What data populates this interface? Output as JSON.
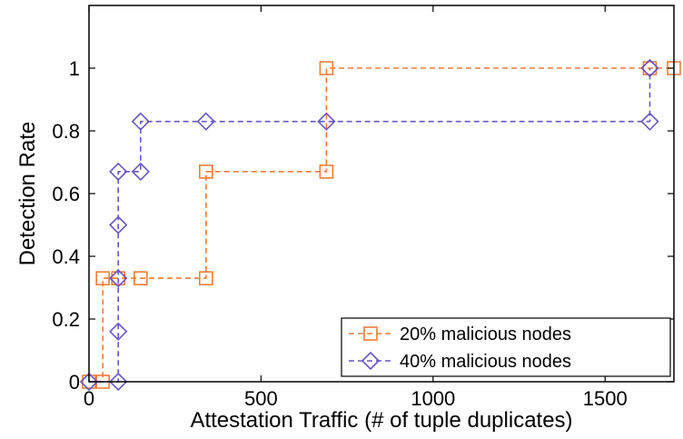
{
  "chart_data": {
    "type": "line",
    "title": "",
    "xlabel": "Attestation Traffic (# of tuple duplicates)",
    "ylabel": "Detection Rate",
    "xlim": [
      0,
      1700
    ],
    "ylim": [
      0,
      1.2
    ],
    "xticks": [
      0,
      500,
      1000,
      1500
    ],
    "yticks": [
      0,
      0.2,
      0.4,
      0.6,
      0.8,
      1
    ],
    "xtick_labels": [
      "0",
      "500",
      "1000",
      "1500"
    ],
    "ytick_labels": [
      "0",
      "0.2",
      "0.4",
      "0.6",
      "0.8",
      "1"
    ],
    "grid": false,
    "legend_position": "bottom-right",
    "series": [
      {
        "name": "20% malicious nodes",
        "color": "#f07d3a",
        "marker": "square",
        "line_style": "dashed-step",
        "points": [
          {
            "x": 0,
            "y": 0
          },
          {
            "x": 40,
            "y": 0
          },
          {
            "x": 40,
            "y": 0.33
          },
          {
            "x": 85,
            "y": 0.33
          },
          {
            "x": 150,
            "y": 0.33
          },
          {
            "x": 340,
            "y": 0.33
          },
          {
            "x": 340,
            "y": 0.67
          },
          {
            "x": 690,
            "y": 0.67
          },
          {
            "x": 690,
            "y": 1
          },
          {
            "x": 1630,
            "y": 1
          },
          {
            "x": 1700,
            "y": 1
          }
        ]
      },
      {
        "name": "40% malicious nodes",
        "color": "#6a55c4",
        "marker": "diamond",
        "line_style": "dashed-step",
        "points": [
          {
            "x": 0,
            "y": 0
          },
          {
            "x": 85,
            "y": 0
          },
          {
            "x": 85,
            "y": 0.16
          },
          {
            "x": 85,
            "y": 0.33
          },
          {
            "x": 85,
            "y": 0.5
          },
          {
            "x": 85,
            "y": 0.67
          },
          {
            "x": 150,
            "y": 0.67
          },
          {
            "x": 150,
            "y": 0.83
          },
          {
            "x": 340,
            "y": 0.83
          },
          {
            "x": 690,
            "y": 0.83
          },
          {
            "x": 1630,
            "y": 0.83
          },
          {
            "x": 1630,
            "y": 1
          }
        ]
      }
    ]
  }
}
